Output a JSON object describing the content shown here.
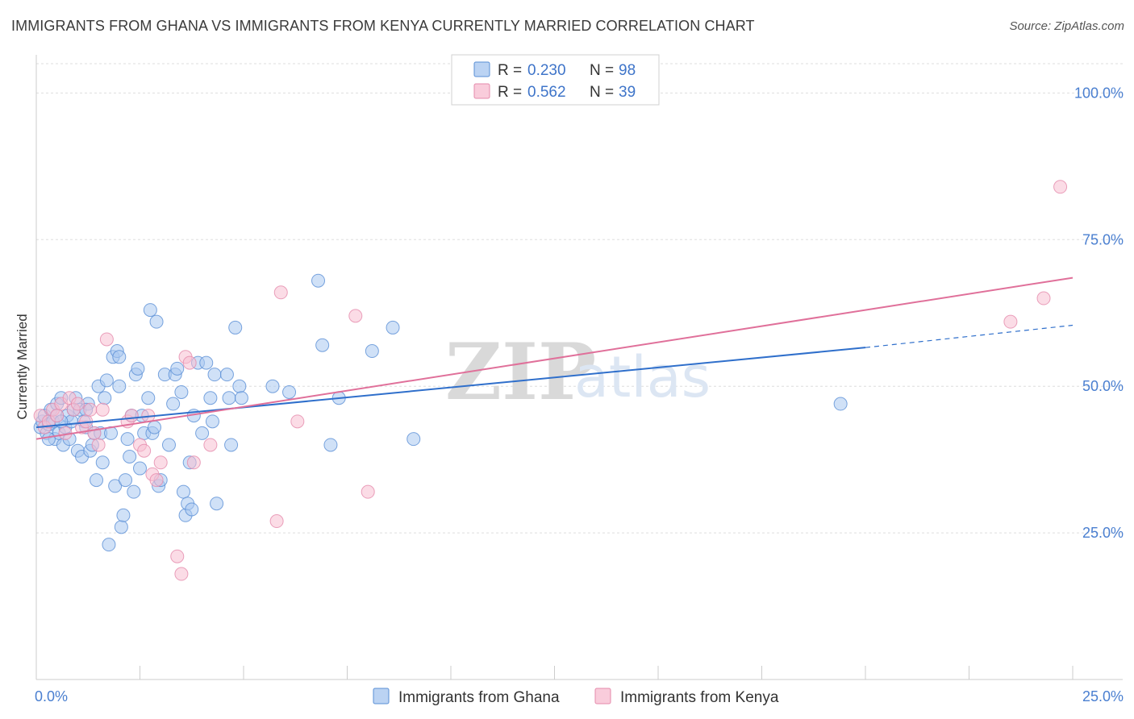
{
  "header": {
    "title": "IMMIGRANTS FROM GHANA VS IMMIGRANTS FROM KENYA CURRENTLY MARRIED CORRELATION CHART",
    "source": "Source: ZipAtlas.com"
  },
  "watermark": {
    "zip": "ZIP",
    "atlas": "atlas"
  },
  "colors": {
    "ghana_fill": "#aac8f0",
    "ghana_stroke": "#5a8fd6",
    "ghana_line": "#2f6fcb",
    "kenya_fill": "#f7bfd2",
    "kenya_stroke": "#e58aab",
    "kenya_line": "#e0709a",
    "grid": "#dddddd",
    "tick_label": "#4a7fd0"
  },
  "legend": {
    "rows": [
      {
        "r_label": "R =",
        "r_value": "0.230",
        "n_label": "N =",
        "n_value": "98"
      },
      {
        "r_label": "R =",
        "r_value": "0.562",
        "n_label": "N =",
        "n_value": "39"
      }
    ]
  },
  "chart_data": {
    "type": "scatter",
    "title": "IMMIGRANTS FROM GHANA VS IMMIGRANTS FROM KENYA CURRENTLY MARRIED CORRELATION CHART",
    "xlabel": "",
    "ylabel": "Currently Married",
    "xlim": [
      0,
      25
    ],
    "ylim": [
      0,
      105
    ],
    "x_tick_labels": [
      "0.0%",
      "25.0%"
    ],
    "y_ticks": [
      25,
      50,
      75,
      100
    ],
    "y_tick_labels": [
      "25.0%",
      "50.0%",
      "75.0%",
      "100.0%"
    ],
    "legend_position": "top-center",
    "series": [
      {
        "name": "Immigrants from Ghana",
        "r": 0.23,
        "n": 98,
        "trend": {
          "x0": 0,
          "y0": 43.0,
          "x1": 20,
          "y1": 56.6,
          "dash_x1": 25,
          "dash_y1": 60.4
        },
        "points": [
          [
            0.1,
            43
          ],
          [
            0.15,
            44
          ],
          [
            0.2,
            45
          ],
          [
            0.25,
            42
          ],
          [
            0.3,
            43.5
          ],
          [
            0.35,
            46
          ],
          [
            0.4,
            44
          ],
          [
            0.45,
            41
          ],
          [
            0.5,
            47
          ],
          [
            0.5,
            45
          ],
          [
            0.55,
            42
          ],
          [
            0.6,
            48
          ],
          [
            0.65,
            40
          ],
          [
            0.7,
            43
          ],
          [
            0.75,
            45
          ],
          [
            0.8,
            41
          ],
          [
            0.85,
            44
          ],
          [
            0.9,
            46
          ],
          [
            0.95,
            48
          ],
          [
            1.0,
            39
          ],
          [
            1.05,
            46
          ],
          [
            1.1,
            38
          ],
          [
            1.15,
            44
          ],
          [
            1.2,
            43
          ],
          [
            1.25,
            47
          ],
          [
            1.3,
            39
          ],
          [
            1.35,
            40
          ],
          [
            1.4,
            42
          ],
          [
            1.45,
            34
          ],
          [
            1.5,
            50
          ],
          [
            1.55,
            42
          ],
          [
            1.6,
            37
          ],
          [
            1.65,
            48
          ],
          [
            1.7,
            51
          ],
          [
            1.75,
            23
          ],
          [
            1.8,
            42
          ],
          [
            1.85,
            55
          ],
          [
            1.9,
            33
          ],
          [
            1.95,
            56
          ],
          [
            2.0,
            50
          ],
          [
            2.05,
            26
          ],
          [
            2.1,
            28
          ],
          [
            2.15,
            34
          ],
          [
            2.2,
            41
          ],
          [
            2.25,
            38
          ],
          [
            2.3,
            45
          ],
          [
            2.35,
            32
          ],
          [
            2.4,
            52
          ],
          [
            2.45,
            53
          ],
          [
            2.5,
            36
          ],
          [
            2.55,
            45
          ],
          [
            2.6,
            42
          ],
          [
            2.7,
            48
          ],
          [
            2.75,
            63
          ],
          [
            2.8,
            42
          ],
          [
            2.85,
            43
          ],
          [
            2.9,
            61
          ],
          [
            2.95,
            33
          ],
          [
            3.0,
            34
          ],
          [
            3.1,
            52
          ],
          [
            3.2,
            40
          ],
          [
            3.3,
            47
          ],
          [
            3.35,
            52
          ],
          [
            3.4,
            53
          ],
          [
            3.5,
            49
          ],
          [
            3.55,
            32
          ],
          [
            3.6,
            28
          ],
          [
            3.65,
            30
          ],
          [
            3.7,
            37
          ],
          [
            3.75,
            29
          ],
          [
            3.8,
            45
          ],
          [
            3.9,
            54
          ],
          [
            4.0,
            42
          ],
          [
            4.1,
            54
          ],
          [
            4.2,
            48
          ],
          [
            4.25,
            44
          ],
          [
            4.3,
            52
          ],
          [
            4.35,
            30
          ],
          [
            4.6,
            52
          ],
          [
            4.65,
            48
          ],
          [
            4.7,
            40
          ],
          [
            4.8,
            60
          ],
          [
            4.9,
            50
          ],
          [
            4.95,
            48
          ],
          [
            5.7,
            50
          ],
          [
            6.1,
            49
          ],
          [
            6.8,
            68
          ],
          [
            6.9,
            57
          ],
          [
            7.1,
            40
          ],
          [
            7.3,
            48
          ],
          [
            8.1,
            56
          ],
          [
            8.6,
            60
          ],
          [
            9.1,
            41
          ],
          [
            19.4,
            47
          ],
          [
            0.3,
            41
          ],
          [
            0.6,
            44
          ],
          [
            1.2,
            46
          ],
          [
            2.0,
            55
          ]
        ]
      },
      {
        "name": "Immigrants from Kenya",
        "r": 0.562,
        "n": 39,
        "trend": {
          "x0": 0,
          "y0": 41.0,
          "x1": 25,
          "y1": 68.5
        },
        "points": [
          [
            0.1,
            45
          ],
          [
            0.2,
            43
          ],
          [
            0.3,
            44
          ],
          [
            0.4,
            46
          ],
          [
            0.5,
            45
          ],
          [
            0.6,
            47
          ],
          [
            0.7,
            42
          ],
          [
            0.8,
            48
          ],
          [
            0.9,
            46
          ],
          [
            1.0,
            47
          ],
          [
            1.1,
            43
          ],
          [
            1.2,
            44
          ],
          [
            1.3,
            46
          ],
          [
            1.4,
            42
          ],
          [
            1.5,
            40
          ],
          [
            1.6,
            46
          ],
          [
            1.7,
            58
          ],
          [
            2.2,
            44
          ],
          [
            2.3,
            45
          ],
          [
            2.5,
            40
          ],
          [
            2.6,
            39
          ],
          [
            2.7,
            45
          ],
          [
            2.8,
            35
          ],
          [
            2.9,
            34
          ],
          [
            3.0,
            37
          ],
          [
            3.4,
            21
          ],
          [
            3.5,
            18
          ],
          [
            3.6,
            55
          ],
          [
            3.7,
            54
          ],
          [
            3.8,
            37
          ],
          [
            4.2,
            40
          ],
          [
            5.8,
            27
          ],
          [
            5.9,
            66
          ],
          [
            6.3,
            44
          ],
          [
            7.7,
            62
          ],
          [
            8.0,
            32
          ],
          [
            23.5,
            61
          ],
          [
            24.3,
            65
          ],
          [
            24.7,
            84
          ]
        ]
      }
    ]
  },
  "bottom_legend": {
    "items": [
      {
        "label": "Immigrants from Ghana"
      },
      {
        "label": "Immigrants from Kenya"
      }
    ]
  }
}
